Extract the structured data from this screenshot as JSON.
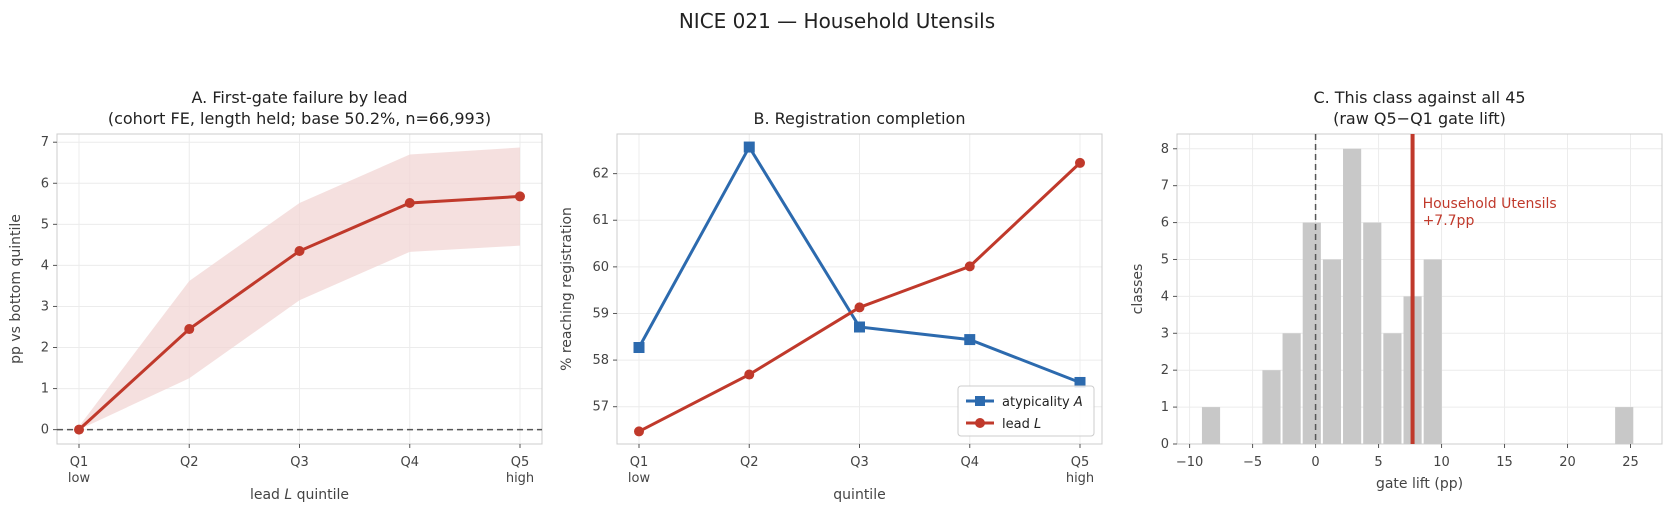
{
  "suptitle": "NICE 021 — Household Utensils",
  "colors": {
    "red": "#c0392b",
    "blue": "#2c6aae",
    "band": "#f2d6d4",
    "hist": "#c8c8c8",
    "frame": "#cccccc",
    "grid": "#ececec"
  },
  "chart_data": [
    {
      "type": "line",
      "title": [
        "A. First-gate failure by lead",
        "(cohort FE, length held; base 50.2%, n=66,993)"
      ],
      "categories": [
        "Q1",
        "Q2",
        "Q3",
        "Q4",
        "Q5"
      ],
      "category_sublabels": [
        "low",
        "",
        "",
        "",
        "high"
      ],
      "xlabel": "lead L quintile",
      "ylabel": "pp vs bottom quintile",
      "ylim": [
        -0.35,
        7.2
      ],
      "yticks": [
        0,
        1,
        2,
        3,
        4,
        5,
        6,
        7
      ],
      "reference_line": 0,
      "series": [
        {
          "values": [
            0,
            2.45,
            4.35,
            5.52,
            5.68
          ],
          "ci_lower": [
            0,
            1.25,
            3.15,
            4.33,
            4.48
          ],
          "ci_upper": [
            0.08,
            3.62,
            5.52,
            6.7,
            6.87
          ],
          "color": "#c0392b",
          "marker": "circle"
        }
      ]
    },
    {
      "type": "line",
      "title": [
        "B. Registration completion"
      ],
      "categories": [
        "Q1",
        "Q2",
        "Q3",
        "Q4",
        "Q5"
      ],
      "category_sublabels": [
        "low",
        "",
        "",
        "",
        "high"
      ],
      "xlabel": "quintile",
      "ylabel": "% reaching registration",
      "ylim": [
        56.2,
        62.85
      ],
      "yticks": [
        57,
        58,
        59,
        60,
        61,
        62
      ],
      "legend_position": "lower-right",
      "series": [
        {
          "name": "atypicality A",
          "values": [
            58.27,
            62.57,
            58.71,
            58.44,
            57.52
          ],
          "color": "#2c6aae",
          "marker": "square"
        },
        {
          "name": "lead L",
          "values": [
            56.47,
            57.69,
            59.13,
            60.01,
            62.23
          ],
          "color": "#c0392b",
          "marker": "circle"
        }
      ]
    },
    {
      "type": "bar",
      "title": [
        "C. This class against all 45",
        "(raw Q5−Q1 gate lift)"
      ],
      "xlabel": "gate lift (pp)",
      "ylabel": "classes",
      "xlim": [
        -11,
        27.5
      ],
      "ylim": [
        0,
        8.4
      ],
      "xticks": [
        -10,
        -5,
        0,
        5,
        10,
        15,
        20,
        25
      ],
      "yticks": [
        0,
        1,
        2,
        3,
        4,
        5,
        6,
        7,
        8
      ],
      "bin_width": 1.6,
      "bin_starts": [
        -9.1,
        -4.3,
        -2.7,
        -1.1,
        0.5,
        2.1,
        3.7,
        5.3,
        6.9,
        8.5,
        23.7
      ],
      "counts": [
        1,
        2,
        3,
        6,
        5,
        8,
        6,
        3,
        4,
        5,
        1
      ],
      "reference_line": 0,
      "highlight": {
        "value": 7.7,
        "label": "Household Utensils",
        "value_label": "+7.7pp"
      }
    }
  ]
}
